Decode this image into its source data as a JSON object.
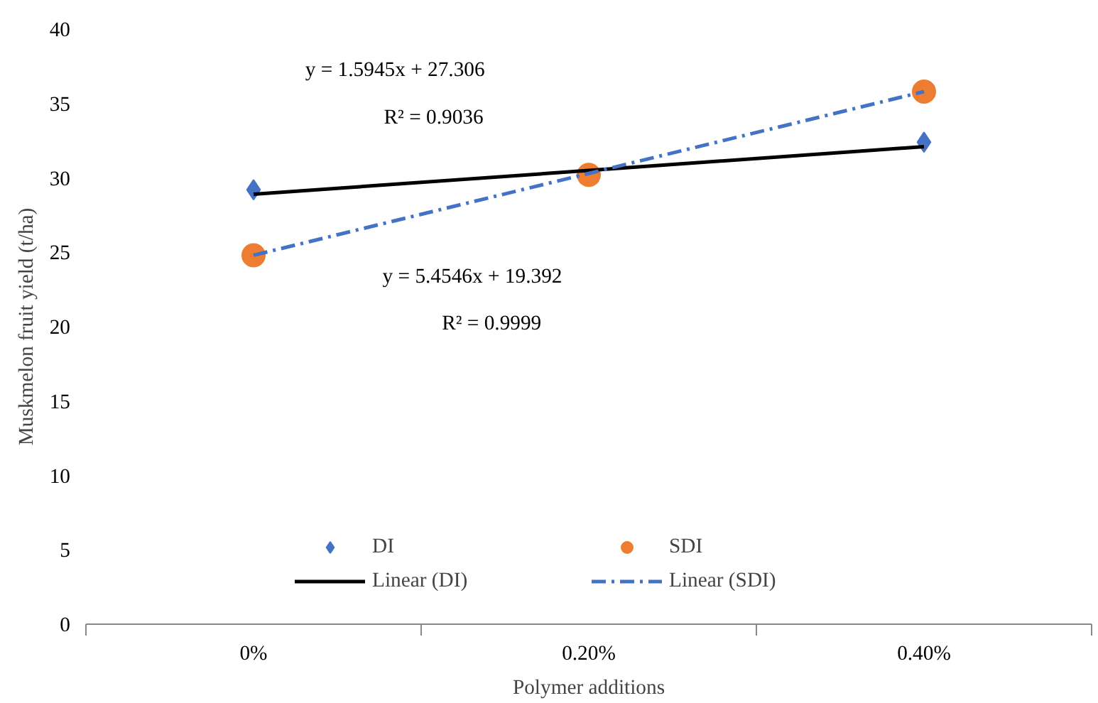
{
  "chart_data": {
    "type": "scatter",
    "categories": [
      "0%",
      "0.20%",
      "0.40%"
    ],
    "xlabel": "Polymer additions",
    "ylabel": "Muskmelon fruit yield (t/ha)",
    "ylim": [
      0,
      40
    ],
    "yticks": [
      0,
      5,
      10,
      15,
      20,
      25,
      30,
      35,
      40
    ],
    "grid": false,
    "legend": "bottom",
    "series": [
      {
        "name": "DI",
        "marker": "diamond",
        "color": "#4472c4",
        "values": [
          29.2,
          null,
          32.4
        ]
      },
      {
        "name": "SDI",
        "marker": "circle",
        "color": "#ed7d31",
        "values": [
          24.8,
          30.2,
          35.8
        ]
      },
      {
        "name": "Linear (DI)",
        "type": "line",
        "line_style": "solid",
        "color": "#000000",
        "values": [
          28.9,
          30.5,
          32.1
        ]
      },
      {
        "name": "Linear (SDI)",
        "type": "line",
        "line_style": "dashdot",
        "color": "#4472c4",
        "values": [
          24.8,
          30.3,
          35.8
        ]
      }
    ],
    "annotations": [
      "y = 1.5945x + 27.306",
      "R² = 0.9036",
      "y = 5.4546x + 19.392",
      "R² = 0.9999"
    ]
  }
}
